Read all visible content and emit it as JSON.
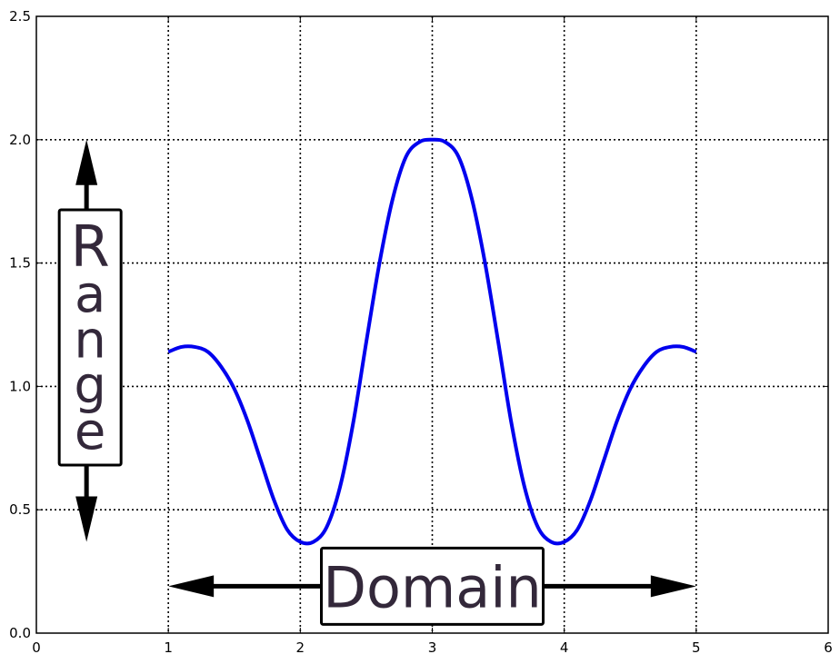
{
  "chart_data": {
    "type": "line",
    "title": "",
    "xlabel": "",
    "ylabel": "",
    "xlim": [
      0,
      6
    ],
    "ylim": [
      0.0,
      2.5
    ],
    "x_ticks": [
      0,
      1,
      2,
      3,
      4,
      5,
      6
    ],
    "x_tick_labels": [
      "0",
      "1",
      "2",
      "3",
      "4",
      "5",
      "6"
    ],
    "y_ticks": [
      0.0,
      0.5,
      1.0,
      1.5,
      2.0,
      2.5
    ],
    "y_tick_labels": [
      "0.0",
      "0.5",
      "1.0",
      "1.5",
      "2.0",
      "2.5"
    ],
    "grid": true,
    "grid_style": "dotted",
    "series": [
      {
        "color": "#0000ee",
        "x": [
          1.0,
          1.1,
          1.2,
          1.3,
          1.4,
          1.5,
          1.6,
          1.7,
          1.8,
          1.9,
          2.0,
          2.1,
          2.2,
          2.3,
          2.4,
          2.5,
          2.6,
          2.7,
          2.8,
          2.9,
          3.0,
          3.1,
          3.2,
          3.3,
          3.4,
          3.5,
          3.6,
          3.7,
          3.8,
          3.9,
          4.0,
          4.1,
          4.2,
          4.3,
          4.4,
          4.5,
          4.6,
          4.7,
          4.8,
          4.9,
          5.0
        ],
        "y": [
          1.14,
          1.16,
          1.16,
          1.14,
          1.08,
          0.99,
          0.86,
          0.7,
          0.54,
          0.42,
          0.37,
          0.37,
          0.43,
          0.59,
          0.85,
          1.18,
          1.5,
          1.76,
          1.93,
          1.99,
          2.0,
          1.99,
          1.93,
          1.76,
          1.5,
          1.18,
          0.85,
          0.59,
          0.43,
          0.37,
          0.37,
          0.42,
          0.54,
          0.7,
          0.86,
          0.99,
          1.08,
          1.14,
          1.16,
          1.16,
          1.14
        ]
      }
    ],
    "annotations": [
      {
        "text": "Range",
        "orientation": "vertical",
        "arrow_x": 0.38,
        "arrow_from": 0.37,
        "arrow_to": 2.0
      },
      {
        "text": "Domain",
        "orientation": "horizontal",
        "arrow_y": 0.19,
        "arrow_from": 1.0,
        "arrow_to": 5.0
      }
    ]
  }
}
